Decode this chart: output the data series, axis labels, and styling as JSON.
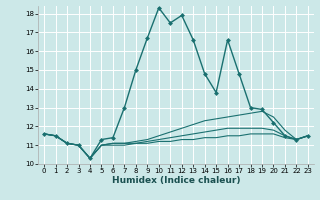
{
  "xlabel": "Humidex (Indice chaleur)",
  "xlim": [
    -0.5,
    23.5
  ],
  "ylim": [
    10,
    18.4
  ],
  "xticks": [
    0,
    1,
    2,
    3,
    4,
    5,
    6,
    7,
    8,
    9,
    10,
    11,
    12,
    13,
    14,
    15,
    16,
    17,
    18,
    19,
    20,
    21,
    22,
    23
  ],
  "yticks": [
    10,
    11,
    12,
    13,
    14,
    15,
    16,
    17,
    18
  ],
  "bg_color": "#cce8e8",
  "line_color": "#1a7070",
  "grid_color": "#ffffff",
  "series": [
    {
      "x": [
        0,
        1,
        2,
        3,
        4,
        5,
        6,
        7,
        8,
        9,
        10,
        11,
        12,
        13,
        14,
        15,
        16,
        17,
        18,
        19,
        20,
        21,
        22,
        23
      ],
      "y": [
        11.6,
        11.5,
        11.1,
        11.0,
        10.3,
        11.3,
        11.4,
        13.0,
        15.0,
        16.7,
        18.3,
        17.5,
        17.9,
        16.6,
        14.8,
        13.8,
        16.6,
        14.8,
        13.0,
        12.9,
        12.2,
        11.5,
        11.3,
        11.5
      ],
      "marker": true
    },
    {
      "x": [
        0,
        1,
        2,
        3,
        4,
        5,
        6,
        7,
        8,
        9,
        10,
        11,
        12,
        13,
        14,
        15,
        16,
        17,
        18,
        19,
        20,
        21,
        22,
        23
      ],
      "y": [
        11.6,
        11.5,
        11.1,
        11.0,
        10.3,
        11.0,
        11.1,
        11.1,
        11.2,
        11.3,
        11.5,
        11.7,
        11.9,
        12.1,
        12.3,
        12.4,
        12.5,
        12.6,
        12.7,
        12.8,
        12.5,
        11.8,
        11.3,
        11.5
      ],
      "marker": false
    },
    {
      "x": [
        0,
        1,
        2,
        3,
        4,
        5,
        6,
        7,
        8,
        9,
        10,
        11,
        12,
        13,
        14,
        15,
        16,
        17,
        18,
        19,
        20,
        21,
        22,
        23
      ],
      "y": [
        11.6,
        11.5,
        11.1,
        11.0,
        10.3,
        11.0,
        11.1,
        11.1,
        11.1,
        11.2,
        11.3,
        11.4,
        11.5,
        11.6,
        11.7,
        11.8,
        11.9,
        11.9,
        11.9,
        11.9,
        11.8,
        11.5,
        11.3,
        11.5
      ],
      "marker": false
    },
    {
      "x": [
        0,
        1,
        2,
        3,
        4,
        5,
        6,
        7,
        8,
        9,
        10,
        11,
        12,
        13,
        14,
        15,
        16,
        17,
        18,
        19,
        20,
        21,
        22,
        23
      ],
      "y": [
        11.6,
        11.5,
        11.1,
        11.0,
        10.3,
        11.0,
        11.0,
        11.0,
        11.1,
        11.1,
        11.2,
        11.2,
        11.3,
        11.3,
        11.4,
        11.4,
        11.5,
        11.5,
        11.6,
        11.6,
        11.6,
        11.4,
        11.3,
        11.5
      ],
      "marker": false
    }
  ]
}
